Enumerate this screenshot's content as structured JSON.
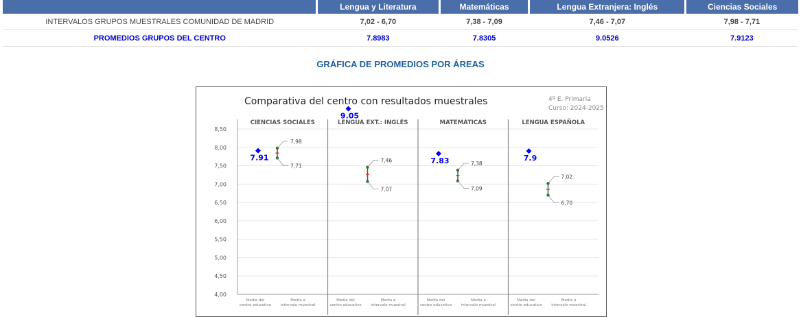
{
  "table": {
    "headers": [
      "",
      "Lengua y Literatura",
      "Matemáticas",
      "Lengua Extranjera: Inglés",
      "Ciencias Sociales"
    ],
    "rows": [
      {
        "label": "INTERVALOS GRUPOS MUESTRALES COMUNIDAD DE MADRID",
        "values": [
          "7,02 - 6,70",
          "7,38 - 7,09",
          "7,46 - 7,07",
          "7,98 - 7,71"
        ]
      },
      {
        "label": "PROMEDIOS GRUPOS DEL CENTRO",
        "values": [
          "7.8983",
          "7.8305",
          "9.0526",
          "7.9123"
        ]
      }
    ]
  },
  "graph_heading": "GRÁFICA DE PROMEDIOS POR ÁREAS",
  "chart_data": {
    "type": "scatter",
    "title": "Comparativa del centro con resultados muestrales",
    "info_lines": [
      "4º E. Primaria",
      "Curso: 2024-2025"
    ],
    "ylim": [
      4.0,
      8.5
    ],
    "yticks": [
      "4,00",
      "4,50",
      "5,00",
      "5,50",
      "6,00",
      "6,50",
      "7,00",
      "7,50",
      "8,00",
      "8,50"
    ],
    "x_labels": [
      "Media del centro educativo",
      "Media e intervalo muestral"
    ],
    "colors": {
      "center": "#0000ee",
      "interval": "#2e6b3a",
      "mean": "#e03030",
      "axis": "#666666"
    },
    "panels": [
      {
        "name": "CIENCIAS SOCIALES",
        "center": 7.91,
        "center_label": "7.91",
        "high": 7.98,
        "low": 7.71,
        "high_label": "7,98",
        "low_label": "7,71"
      },
      {
        "name": "LENGUA EXT.: INGLÉS",
        "center": 9.05,
        "center_label": "9.05",
        "high": 7.46,
        "low": 7.07,
        "high_label": "7,46",
        "low_label": "7,07"
      },
      {
        "name": "MATEMÁTICAS",
        "center": 7.83,
        "center_label": "7.83",
        "high": 7.38,
        "low": 7.09,
        "high_label": "7,38",
        "low_label": "7,09"
      },
      {
        "name": "LENGUA ESPAÑOLA",
        "center": 7.9,
        "center_label": "7.9",
        "high": 7.02,
        "low": 6.7,
        "high_label": "7,02",
        "low_label": "6,70"
      }
    ]
  }
}
